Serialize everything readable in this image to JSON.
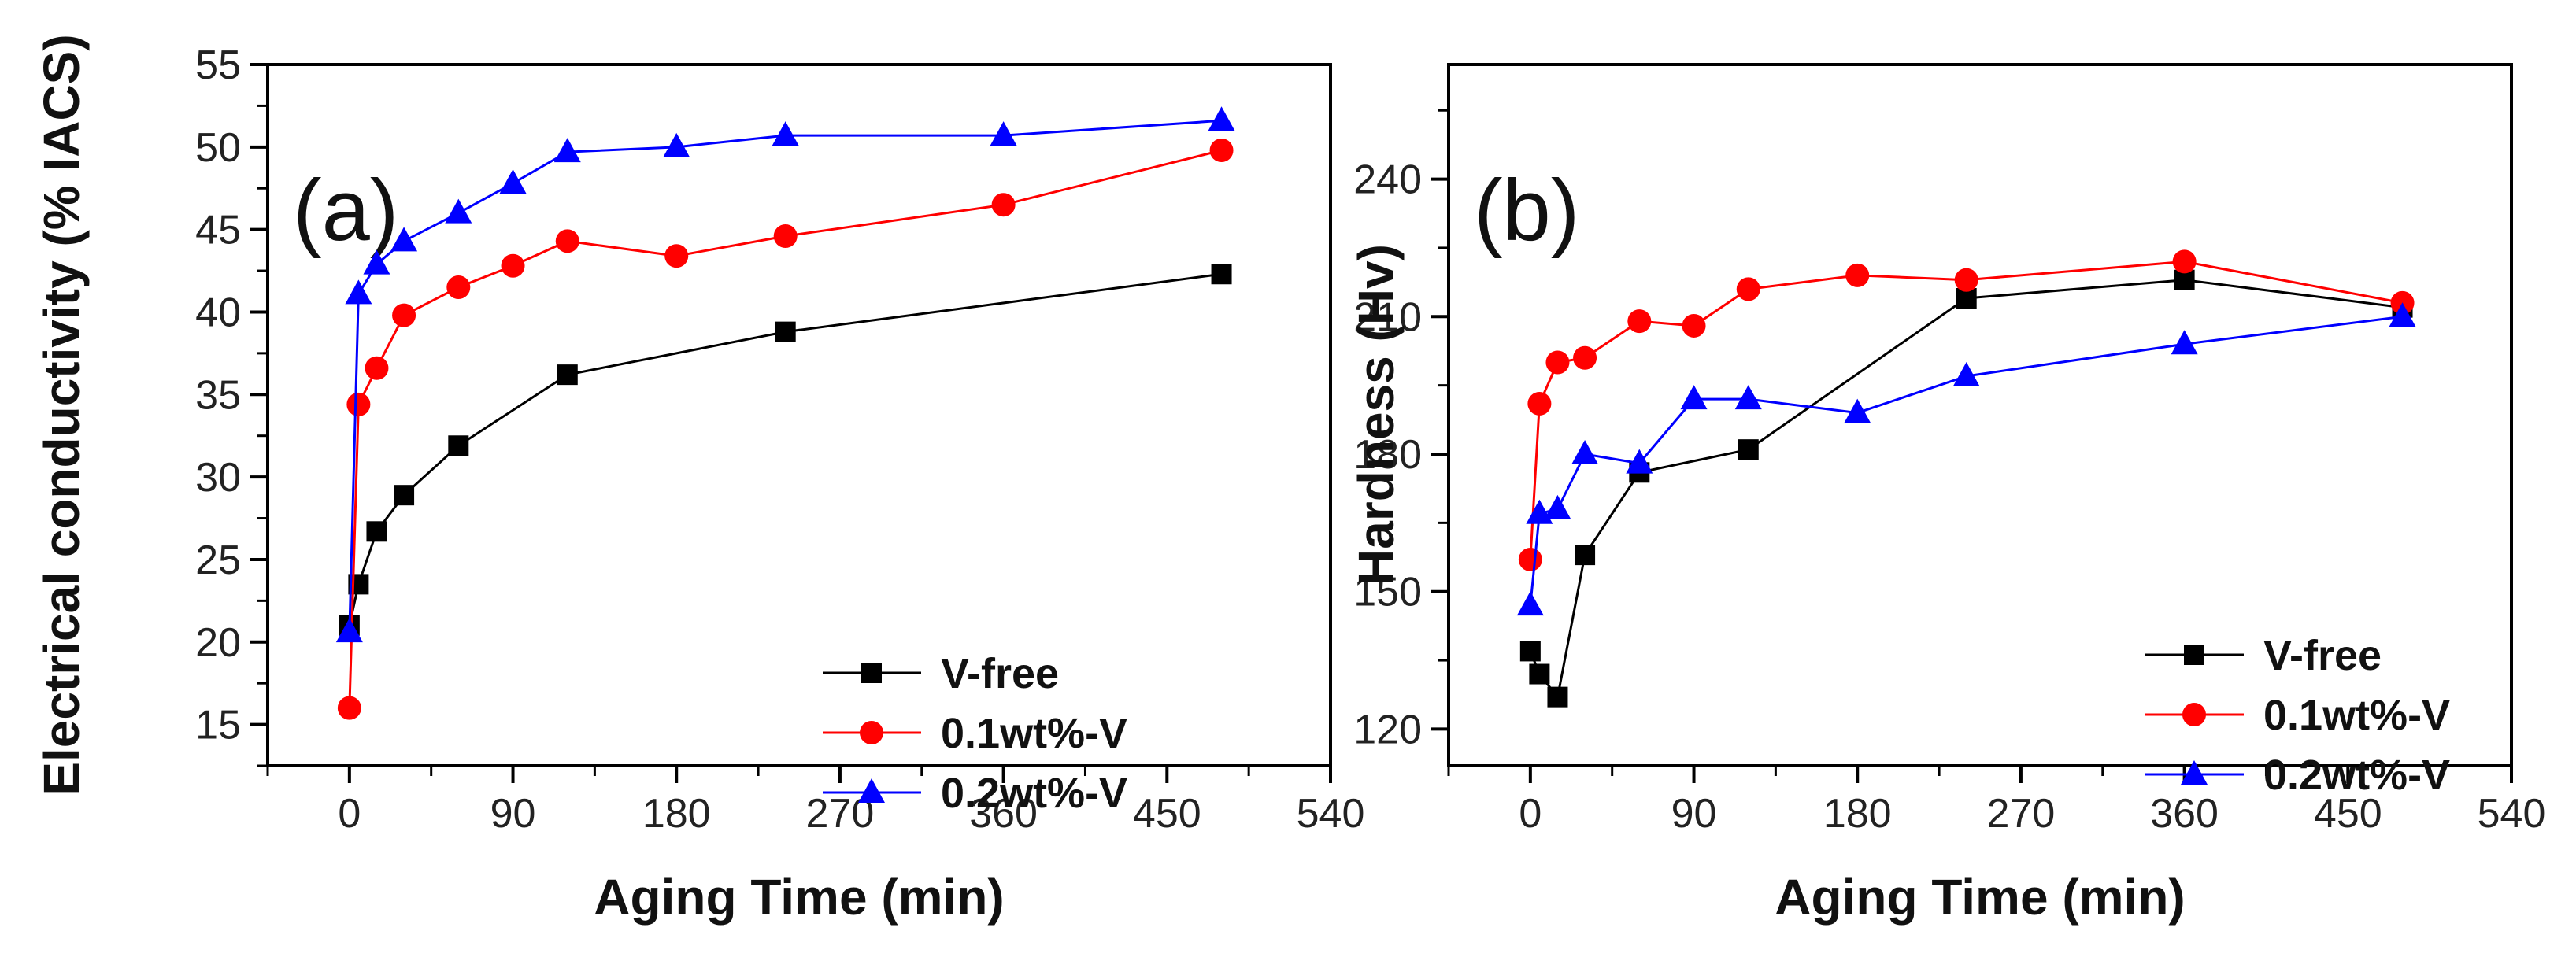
{
  "chart_data": [
    {
      "type": "line",
      "panel_label": "(a)",
      "xlabel": "Aging Time (min)",
      "ylabel": "Electrical conductivity (% IACS)",
      "xlim": [
        -45,
        540
      ],
      "ylim": [
        12.5,
        55
      ],
      "xticks": [
        0,
        90,
        180,
        270,
        360,
        450,
        540
      ],
      "yticks": [
        15,
        20,
        25,
        30,
        35,
        40,
        45,
        50,
        55
      ],
      "legend_position": "bottom-right",
      "series": [
        {
          "name": "V-free",
          "color": "#000000",
          "marker": "square",
          "x": [
            0,
            5,
            15,
            30,
            60,
            120,
            240,
            480
          ],
          "y": [
            21.0,
            23.5,
            26.7,
            28.9,
            31.9,
            36.2,
            38.8,
            42.3
          ]
        },
        {
          "name": "0.1wt%-V",
          "color": "#ff0000",
          "marker": "circle",
          "x": [
            0,
            5,
            15,
            30,
            60,
            90,
            120,
            180,
            240,
            360,
            480
          ],
          "y": [
            16.0,
            34.4,
            36.6,
            39.8,
            41.5,
            42.8,
            44.3,
            43.4,
            44.6,
            46.5,
            49.8
          ]
        },
        {
          "name": "0.2wt%-V",
          "color": "#0000ff",
          "marker": "triangle",
          "x": [
            0,
            5,
            15,
            30,
            60,
            90,
            120,
            180,
            240,
            360,
            480
          ],
          "y": [
            20.6,
            41.1,
            42.9,
            44.3,
            46.0,
            47.8,
            49.7,
            50.0,
            50.7,
            50.7,
            51.6
          ]
        }
      ]
    },
    {
      "type": "line",
      "panel_label": "(b)",
      "xlabel": "Aging Time (min)",
      "ylabel": "Hardness (Hv)",
      "xlim": [
        -45,
        540
      ],
      "ylim": [
        112,
        265
      ],
      "xticks": [
        0,
        90,
        180,
        270,
        360,
        450,
        540
      ],
      "yticks": [
        120,
        150,
        180,
        210,
        240
      ],
      "legend_position": "bottom-right",
      "series": [
        {
          "name": "V-free",
          "color": "#000000",
          "marker": "square",
          "x": [
            0,
            5,
            15,
            30,
            60,
            120,
            240,
            360,
            480
          ],
          "y": [
            137,
            132,
            127,
            158,
            176,
            181,
            214,
            218,
            212
          ]
        },
        {
          "name": "0.1wt%-V",
          "color": "#ff0000",
          "marker": "circle",
          "x": [
            0,
            5,
            15,
            30,
            60,
            90,
            120,
            180,
            240,
            360,
            480
          ],
          "y": [
            157,
            191,
            200,
            201,
            209,
            208,
            216,
            219,
            218,
            222,
            213
          ]
        },
        {
          "name": "0.2wt%-V",
          "color": "#0000ff",
          "marker": "triangle",
          "x": [
            0,
            5,
            15,
            30,
            60,
            90,
            120,
            180,
            240,
            360,
            480
          ],
          "y": [
            147,
            167,
            168,
            180,
            178,
            192,
            192,
            189,
            197,
            204,
            210
          ]
        }
      ]
    }
  ]
}
